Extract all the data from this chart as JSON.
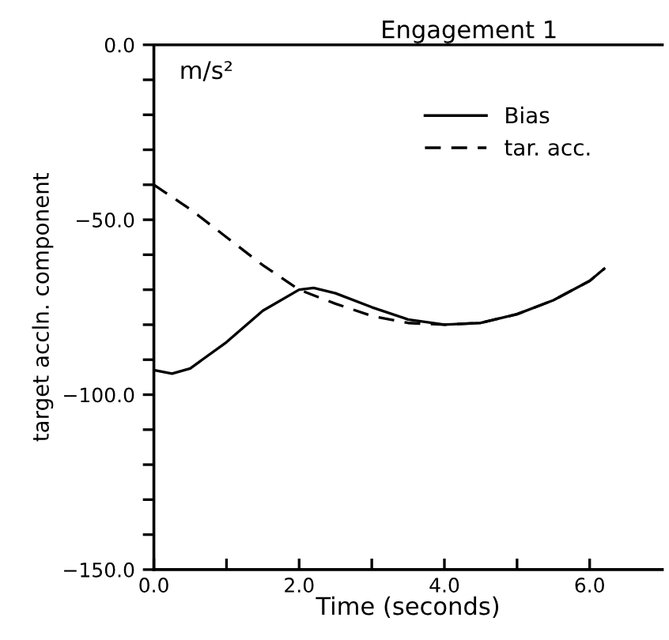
{
  "chart_data": {
    "type": "line",
    "title": "Engagement 1",
    "xlabel": "Time (seconds)",
    "ylabel": "target accln. component",
    "annotations": [
      "m/s²"
    ],
    "xlim": [
      0,
      7
    ],
    "ylim": [
      -150,
      0
    ],
    "xticks": [
      {
        "value": 0,
        "label": "0.0"
      },
      {
        "value": 1,
        "label": null
      },
      {
        "value": 2,
        "label": "2.0"
      },
      {
        "value": 3,
        "label": null
      },
      {
        "value": 4,
        "label": "4.0"
      },
      {
        "value": 5,
        "label": null
      },
      {
        "value": 6,
        "label": "6.0"
      }
    ],
    "yticks": [
      {
        "value": -150,
        "label": "−150.0"
      },
      {
        "value": -140,
        "label": null
      },
      {
        "value": -130,
        "label": null
      },
      {
        "value": -120,
        "label": null
      },
      {
        "value": -110,
        "label": null
      },
      {
        "value": -100,
        "label": "−100.0"
      },
      {
        "value": -90,
        "label": null
      },
      {
        "value": -80,
        "label": null
      },
      {
        "value": -70,
        "label": null
      },
      {
        "value": -60,
        "label": null
      },
      {
        "value": -50,
        "label": "−50.0"
      },
      {
        "value": -40,
        "label": null
      },
      {
        "value": -30,
        "label": null
      },
      {
        "value": -20,
        "label": null
      },
      {
        "value": -10,
        "label": null
      },
      {
        "value": 0,
        "label": "0.0"
      }
    ],
    "grid": false,
    "legend": "top right",
    "marker": "none",
    "series": [
      {
        "name": "Bias",
        "color": "#000000",
        "line_style": "solid",
        "x": [
          0,
          0.25,
          0.5,
          1,
          1.5,
          2,
          2.2,
          2.5,
          3,
          3.5,
          4,
          4.5,
          5,
          5.5,
          6,
          6.2
        ],
        "values": [
          -93,
          -94,
          -92.5,
          -85,
          -76,
          -70,
          -69.5,
          -71,
          -75,
          -78.5,
          -80,
          -79.5,
          -77,
          -73,
          -67.5,
          -64
        ]
      },
      {
        "name": "tar. acc.",
        "color": "#000000",
        "line_style": "dashed",
        "x": [
          0,
          0.5,
          1,
          1.5,
          2,
          2.5,
          3,
          3.5,
          4,
          4.5,
          5,
          5.5,
          6,
          6.2
        ],
        "values": [
          -40,
          -47,
          -55,
          -63,
          -70,
          -74,
          -77.5,
          -79.5,
          -80,
          -79.5,
          -77,
          -73,
          -67.5,
          -64
        ]
      }
    ]
  }
}
